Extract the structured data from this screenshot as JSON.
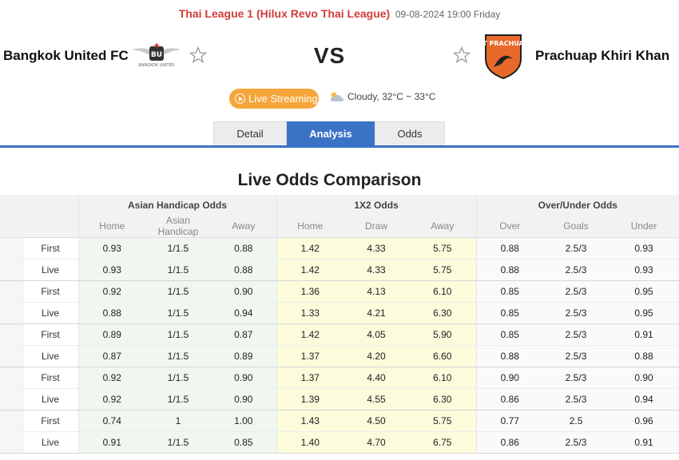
{
  "header": {
    "league": "Thai League 1 (Hilux Revo Thai League)",
    "datetime": "09-08-2024 19:00 Friday"
  },
  "match": {
    "home_team": "Bangkok United FC",
    "away_team": "Prachuap Khiri Khan",
    "vs_label": "VS",
    "home_logo_text": "BANGKOK UNITED",
    "away_logo_text": "PT PRACHUAP"
  },
  "live_streaming_label": "Live Streaming",
  "weather": "Cloudy, 32°C ~ 33°C",
  "tabs": [
    {
      "label": "Detail",
      "active": false
    },
    {
      "label": "Analysis",
      "active": true
    },
    {
      "label": "Odds",
      "active": false
    }
  ],
  "section_title": "Live Odds Comparison",
  "table": {
    "group_headers": [
      "Asian Handicap Odds",
      "1X2 Odds",
      "Over/Under Odds"
    ],
    "column_headers": [
      "Home",
      "Asian Handicap",
      "Away",
      "Home",
      "Draw",
      "Away",
      "Over",
      "Goals",
      "Under"
    ],
    "rows": [
      {
        "type": "First",
        "ah_home": "0.93",
        "ah_line": "1/1.5",
        "ah_away": "0.88",
        "x_home": "1.42",
        "x_draw": "4.33",
        "x_away": "5.75",
        "ou_over": "0.88",
        "ou_goals": "2.5/3",
        "ou_under": "0.93"
      },
      {
        "type": "Live",
        "ah_home": "0.93",
        "ah_line": "1/1.5",
        "ah_away": "0.88",
        "x_home": "1.42",
        "x_draw": "4.33",
        "x_away": "5.75",
        "ou_over": "0.88",
        "ou_goals": "2.5/3",
        "ou_under": "0.93"
      },
      {
        "type": "First",
        "ah_home": "0.92",
        "ah_line": "1/1.5",
        "ah_away": "0.90",
        "x_home": "1.36",
        "x_draw": "4.13",
        "x_away": "6.10",
        "ou_over": "0.85",
        "ou_goals": "2.5/3",
        "ou_under": "0.95"
      },
      {
        "type": "Live",
        "ah_home": "0.88",
        "ah_line": "1/1.5",
        "ah_away": "0.94",
        "x_home": "1.33",
        "x_draw": "4.21",
        "x_away": "6.30",
        "ou_over": "0.85",
        "ou_goals": "2.5/3",
        "ou_under": "0.95"
      },
      {
        "type": "First",
        "ah_home": "0.89",
        "ah_line": "1/1.5",
        "ah_away": "0.87",
        "x_home": "1.42",
        "x_draw": "4.05",
        "x_away": "5.90",
        "ou_over": "0.85",
        "ou_goals": "2.5/3",
        "ou_under": "0.91"
      },
      {
        "type": "Live",
        "ah_home": "0.87",
        "ah_line": "1/1.5",
        "ah_away": "0.89",
        "x_home": "1.37",
        "x_draw": "4.20",
        "x_away": "6.60",
        "ou_over": "0.88",
        "ou_goals": "2.5/3",
        "ou_under": "0.88"
      },
      {
        "type": "First",
        "ah_home": "0.92",
        "ah_line": "1/1.5",
        "ah_away": "0.90",
        "x_home": "1.37",
        "x_draw": "4.40",
        "x_away": "6.10",
        "ou_over": "0.90",
        "ou_goals": "2.5/3",
        "ou_under": "0.90"
      },
      {
        "type": "Live",
        "ah_home": "0.92",
        "ah_line": "1/1.5",
        "ah_away": "0.90",
        "x_home": "1.39",
        "x_draw": "4.55",
        "x_away": "6.30",
        "ou_over": "0.86",
        "ou_goals": "2.5/3",
        "ou_under": "0.94"
      },
      {
        "type": "First",
        "ah_home": "0.74",
        "ah_line": "1",
        "ah_away": "1.00",
        "x_home": "1.43",
        "x_draw": "4.50",
        "x_away": "5.75",
        "ou_over": "0.77",
        "ou_goals": "2.5",
        "ou_under": "0.96"
      },
      {
        "type": "Live",
        "ah_home": "0.91",
        "ah_line": "1/1.5",
        "ah_away": "0.85",
        "x_home": "1.40",
        "x_draw": "4.70",
        "x_away": "6.75",
        "ou_over": "0.86",
        "ou_goals": "2.5/3",
        "ou_under": "0.91"
      }
    ]
  },
  "colors": {
    "league_red": "#d23b3b",
    "tab_active": "#3a73c6",
    "live_button": "#f6a53a",
    "away_logo_orange": "#e8692a",
    "x12_bg": "#fcfbdc",
    "ah_bg": "#f0f7f0"
  }
}
